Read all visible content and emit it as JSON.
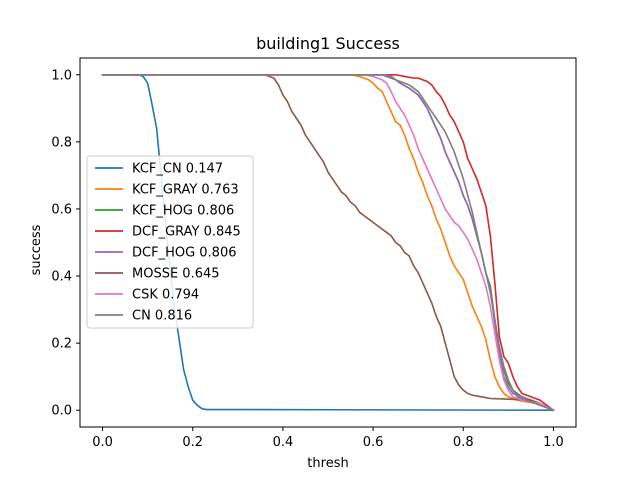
{
  "chart_data": {
    "type": "line",
    "title": "building1 Success",
    "xlabel": "thresh",
    "ylabel": "success",
    "xlim": [
      -0.05,
      1.05
    ],
    "ylim": [
      -0.05,
      1.05
    ],
    "xticks": [
      0.0,
      0.2,
      0.4,
      0.6,
      0.8,
      1.0
    ],
    "xtick_labels": [
      "0.0",
      "0.2",
      "0.4",
      "0.6",
      "0.8",
      "1.0"
    ],
    "yticks": [
      0.0,
      0.2,
      0.4,
      0.6,
      0.8,
      1.0
    ],
    "ytick_labels": [
      "0.0",
      "0.2",
      "0.4",
      "0.6",
      "0.8",
      "1.0"
    ],
    "grid": false,
    "legend_position": "center-left",
    "series": [
      {
        "name": "KCF_CN 0.147",
        "color": "#1f77b4",
        "points": [
          [
            0,
            1
          ],
          [
            0.08,
            1
          ],
          [
            0.09,
            0.995
          ],
          [
            0.1,
            0.975
          ],
          [
            0.11,
            0.91
          ],
          [
            0.12,
            0.84
          ],
          [
            0.13,
            0.7
          ],
          [
            0.14,
            0.55
          ],
          [
            0.15,
            0.42
          ],
          [
            0.16,
            0.3
          ],
          [
            0.17,
            0.21
          ],
          [
            0.18,
            0.12
          ],
          [
            0.19,
            0.07
          ],
          [
            0.2,
            0.03
          ],
          [
            0.21,
            0.015
          ],
          [
            0.22,
            0.005
          ],
          [
            0.23,
            0.002
          ],
          [
            0.3,
            0.002
          ],
          [
            1.0,
            0.0
          ]
        ]
      },
      {
        "name": "KCF_GRAY 0.763",
        "color": "#ff7f0e",
        "points": [
          [
            0,
            1
          ],
          [
            0.55,
            1
          ],
          [
            0.57,
            0.995
          ],
          [
            0.59,
            0.985
          ],
          [
            0.6,
            0.975
          ],
          [
            0.61,
            0.96
          ],
          [
            0.62,
            0.95
          ],
          [
            0.63,
            0.92
          ],
          [
            0.64,
            0.89
          ],
          [
            0.65,
            0.86
          ],
          [
            0.66,
            0.85
          ],
          [
            0.67,
            0.82
          ],
          [
            0.68,
            0.78
          ],
          [
            0.69,
            0.75
          ],
          [
            0.7,
            0.71
          ],
          [
            0.71,
            0.68
          ],
          [
            0.72,
            0.64
          ],
          [
            0.73,
            0.61
          ],
          [
            0.74,
            0.57
          ],
          [
            0.75,
            0.54
          ],
          [
            0.76,
            0.5
          ],
          [
            0.77,
            0.46
          ],
          [
            0.78,
            0.43
          ],
          [
            0.79,
            0.41
          ],
          [
            0.8,
            0.39
          ],
          [
            0.81,
            0.35
          ],
          [
            0.82,
            0.31
          ],
          [
            0.83,
            0.28
          ],
          [
            0.84,
            0.25
          ],
          [
            0.85,
            0.21
          ],
          [
            0.86,
            0.15
          ],
          [
            0.87,
            0.1
          ],
          [
            0.88,
            0.07
          ],
          [
            0.89,
            0.05
          ],
          [
            0.9,
            0.04
          ],
          [
            0.92,
            0.03
          ],
          [
            0.94,
            0.025
          ],
          [
            0.96,
            0.02
          ],
          [
            0.98,
            0.01
          ],
          [
            1.0,
            0.0
          ]
        ]
      },
      {
        "name": "KCF_HOG 0.806",
        "color": "#2ca02c",
        "points": [
          [
            0,
            1
          ],
          [
            0.63,
            1
          ],
          [
            0.64,
            0.995
          ],
          [
            0.65,
            0.985
          ],
          [
            0.66,
            0.975
          ],
          [
            0.68,
            0.96
          ],
          [
            0.7,
            0.94
          ],
          [
            0.71,
            0.92
          ],
          [
            0.72,
            0.9
          ],
          [
            0.73,
            0.87
          ],
          [
            0.74,
            0.84
          ],
          [
            0.75,
            0.81
          ],
          [
            0.76,
            0.77
          ],
          [
            0.77,
            0.74
          ],
          [
            0.78,
            0.71
          ],
          [
            0.79,
            0.68
          ],
          [
            0.8,
            0.64
          ],
          [
            0.81,
            0.61
          ],
          [
            0.82,
            0.57
          ],
          [
            0.83,
            0.52
          ],
          [
            0.84,
            0.47
          ],
          [
            0.85,
            0.41
          ],
          [
            0.86,
            0.37
          ],
          [
            0.87,
            0.27
          ],
          [
            0.88,
            0.18
          ],
          [
            0.89,
            0.12
          ],
          [
            0.9,
            0.08
          ],
          [
            0.91,
            0.06
          ],
          [
            0.93,
            0.04
          ],
          [
            0.95,
            0.03
          ],
          [
            0.97,
            0.02
          ],
          [
            1.0,
            0.0
          ]
        ]
      },
      {
        "name": "DCF_GRAY 0.845",
        "color": "#d62728",
        "points": [
          [
            0,
            1
          ],
          [
            0.65,
            1
          ],
          [
            0.67,
            0.995
          ],
          [
            0.69,
            0.99
          ],
          [
            0.7,
            0.99
          ],
          [
            0.71,
            0.985
          ],
          [
            0.72,
            0.98
          ],
          [
            0.73,
            0.97
          ],
          [
            0.74,
            0.95
          ],
          [
            0.75,
            0.935
          ],
          [
            0.76,
            0.91
          ],
          [
            0.77,
            0.88
          ],
          [
            0.78,
            0.86
          ],
          [
            0.79,
            0.83
          ],
          [
            0.8,
            0.8
          ],
          [
            0.81,
            0.75
          ],
          [
            0.82,
            0.72
          ],
          [
            0.83,
            0.69
          ],
          [
            0.84,
            0.65
          ],
          [
            0.85,
            0.61
          ],
          [
            0.86,
            0.52
          ],
          [
            0.87,
            0.38
          ],
          [
            0.875,
            0.3
          ],
          [
            0.88,
            0.22
          ],
          [
            0.89,
            0.16
          ],
          [
            0.9,
            0.14
          ],
          [
            0.91,
            0.1
          ],
          [
            0.92,
            0.07
          ],
          [
            0.93,
            0.05
          ],
          [
            0.95,
            0.04
          ],
          [
            0.97,
            0.03
          ],
          [
            1.0,
            0.0
          ]
        ]
      },
      {
        "name": "DCF_HOG 0.806",
        "color": "#9467bd",
        "points": [
          [
            0,
            1
          ],
          [
            0.63,
            1
          ],
          [
            0.64,
            0.995
          ],
          [
            0.65,
            0.985
          ],
          [
            0.66,
            0.975
          ],
          [
            0.68,
            0.96
          ],
          [
            0.7,
            0.94
          ],
          [
            0.71,
            0.92
          ],
          [
            0.72,
            0.9
          ],
          [
            0.73,
            0.87
          ],
          [
            0.74,
            0.84
          ],
          [
            0.75,
            0.81
          ],
          [
            0.76,
            0.77
          ],
          [
            0.77,
            0.74
          ],
          [
            0.78,
            0.71
          ],
          [
            0.79,
            0.68
          ],
          [
            0.8,
            0.64
          ],
          [
            0.81,
            0.61
          ],
          [
            0.82,
            0.57
          ],
          [
            0.83,
            0.52
          ],
          [
            0.84,
            0.47
          ],
          [
            0.85,
            0.41
          ],
          [
            0.86,
            0.36
          ],
          [
            0.87,
            0.26
          ],
          [
            0.88,
            0.17
          ],
          [
            0.89,
            0.1
          ],
          [
            0.9,
            0.07
          ],
          [
            0.91,
            0.05
          ],
          [
            0.93,
            0.04
          ],
          [
            0.95,
            0.03
          ],
          [
            0.97,
            0.02
          ],
          [
            1.0,
            0.0
          ]
        ]
      },
      {
        "name": "MOSSE 0.645",
        "color": "#8c564b",
        "points": [
          [
            0,
            1
          ],
          [
            0.36,
            1
          ],
          [
            0.38,
            0.99
          ],
          [
            0.39,
            0.97
          ],
          [
            0.4,
            0.94
          ],
          [
            0.41,
            0.92
          ],
          [
            0.42,
            0.89
          ],
          [
            0.43,
            0.87
          ],
          [
            0.44,
            0.85
          ],
          [
            0.45,
            0.82
          ],
          [
            0.46,
            0.8
          ],
          [
            0.47,
            0.78
          ],
          [
            0.48,
            0.76
          ],
          [
            0.49,
            0.74
          ],
          [
            0.5,
            0.71
          ],
          [
            0.51,
            0.69
          ],
          [
            0.52,
            0.67
          ],
          [
            0.53,
            0.65
          ],
          [
            0.54,
            0.64
          ],
          [
            0.55,
            0.62
          ],
          [
            0.56,
            0.61
          ],
          [
            0.57,
            0.59
          ],
          [
            0.58,
            0.58
          ],
          [
            0.59,
            0.57
          ],
          [
            0.6,
            0.56
          ],
          [
            0.61,
            0.55
          ],
          [
            0.62,
            0.54
          ],
          [
            0.63,
            0.53
          ],
          [
            0.64,
            0.52
          ],
          [
            0.65,
            0.5
          ],
          [
            0.66,
            0.49
          ],
          [
            0.67,
            0.47
          ],
          [
            0.68,
            0.46
          ],
          [
            0.69,
            0.43
          ],
          [
            0.7,
            0.41
          ],
          [
            0.71,
            0.38
          ],
          [
            0.72,
            0.35
          ],
          [
            0.73,
            0.32
          ],
          [
            0.74,
            0.28
          ],
          [
            0.75,
            0.25
          ],
          [
            0.76,
            0.2
          ],
          [
            0.77,
            0.15
          ],
          [
            0.78,
            0.1
          ],
          [
            0.79,
            0.075
          ],
          [
            0.8,
            0.06
          ],
          [
            0.81,
            0.05
          ],
          [
            0.82,
            0.045
          ],
          [
            0.84,
            0.04
          ],
          [
            0.86,
            0.035
          ],
          [
            0.9,
            0.033
          ],
          [
            0.95,
            0.03
          ],
          [
            0.97,
            0.02
          ],
          [
            1.0,
            0.0
          ]
        ]
      },
      {
        "name": "CSK 0.794",
        "color": "#e377c2",
        "points": [
          [
            0,
            1
          ],
          [
            0.58,
            1
          ],
          [
            0.6,
            0.995
          ],
          [
            0.61,
            0.99
          ],
          [
            0.62,
            0.985
          ],
          [
            0.63,
            0.975
          ],
          [
            0.64,
            0.95
          ],
          [
            0.65,
            0.92
          ],
          [
            0.66,
            0.9
          ],
          [
            0.67,
            0.88
          ],
          [
            0.68,
            0.85
          ],
          [
            0.69,
            0.82
          ],
          [
            0.7,
            0.78
          ],
          [
            0.71,
            0.75
          ],
          [
            0.72,
            0.72
          ],
          [
            0.73,
            0.69
          ],
          [
            0.74,
            0.66
          ],
          [
            0.75,
            0.63
          ],
          [
            0.76,
            0.6
          ],
          [
            0.77,
            0.58
          ],
          [
            0.78,
            0.56
          ],
          [
            0.79,
            0.55
          ],
          [
            0.8,
            0.53
          ],
          [
            0.81,
            0.51
          ],
          [
            0.82,
            0.48
          ],
          [
            0.83,
            0.45
          ],
          [
            0.84,
            0.41
          ],
          [
            0.85,
            0.37
          ],
          [
            0.86,
            0.31
          ],
          [
            0.87,
            0.23
          ],
          [
            0.88,
            0.15
          ],
          [
            0.89,
            0.09
          ],
          [
            0.9,
            0.06
          ],
          [
            0.91,
            0.04
          ],
          [
            0.93,
            0.03
          ],
          [
            0.95,
            0.025
          ],
          [
            0.97,
            0.02
          ],
          [
            1.0,
            0.0
          ]
        ]
      },
      {
        "name": "CN 0.816",
        "color": "#7f7f7f",
        "points": [
          [
            0,
            1
          ],
          [
            0.62,
            1
          ],
          [
            0.63,
            0.995
          ],
          [
            0.64,
            0.99
          ],
          [
            0.66,
            0.98
          ],
          [
            0.68,
            0.97
          ],
          [
            0.69,
            0.96
          ],
          [
            0.7,
            0.95
          ],
          [
            0.71,
            0.93
          ],
          [
            0.72,
            0.91
          ],
          [
            0.73,
            0.89
          ],
          [
            0.74,
            0.87
          ],
          [
            0.75,
            0.85
          ],
          [
            0.76,
            0.83
          ],
          [
            0.77,
            0.8
          ],
          [
            0.78,
            0.77
          ],
          [
            0.79,
            0.73
          ],
          [
            0.8,
            0.69
          ],
          [
            0.81,
            0.64
          ],
          [
            0.82,
            0.59
          ],
          [
            0.83,
            0.53
          ],
          [
            0.84,
            0.47
          ],
          [
            0.85,
            0.41
          ],
          [
            0.86,
            0.35
          ],
          [
            0.87,
            0.27
          ],
          [
            0.88,
            0.19
          ],
          [
            0.89,
            0.13
          ],
          [
            0.9,
            0.09
          ],
          [
            0.91,
            0.06
          ],
          [
            0.92,
            0.04
          ],
          [
            0.94,
            0.03
          ],
          [
            0.96,
            0.02
          ],
          [
            0.98,
            0.01
          ],
          [
            1.0,
            0.0
          ]
        ]
      }
    ]
  }
}
